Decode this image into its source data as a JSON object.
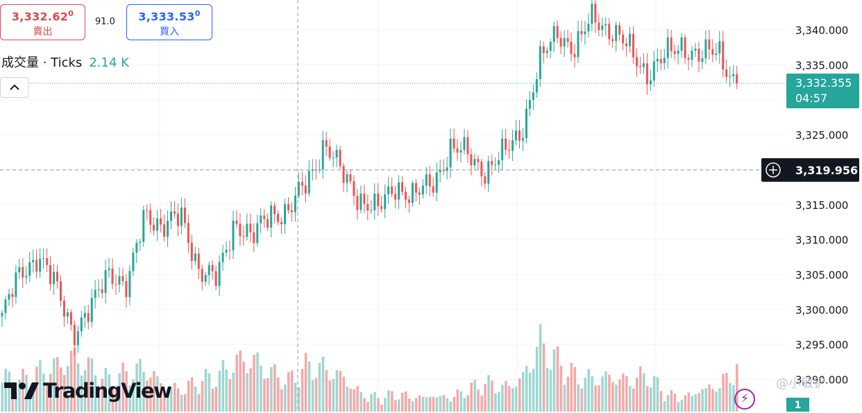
{
  "trade": {
    "sell_price": "3,332.62",
    "sell_sup": "0",
    "sell_label": "賣出",
    "spread": "91.0",
    "buy_price": "3,333.53",
    "buy_sup": "0",
    "buy_label": "買入"
  },
  "volume_legend": {
    "label": "成交量 · Ticks",
    "value": "2.14 K"
  },
  "brand": "TradingView",
  "watermark": "@小敏铲",
  "scale_badge": "1",
  "colors": {
    "up": "#26a69a",
    "down": "#ef5350",
    "vol_up": "#9fd6d1",
    "vol_down": "#f5a8a8",
    "crosshair_label_bg": "#131722"
  },
  "chart_data": {
    "type": "candlestick",
    "y_axis": {
      "ticks": [
        "3,340.000",
        "3,335.000",
        "3,325.000",
        "3,315.000",
        "3,310.000",
        "3,305.000",
        "3,300.000",
        "3,295.000",
        "3,290.000"
      ],
      "ylim": [
        3287.5,
        3344.5
      ]
    },
    "last_price": {
      "value": "3,332.355",
      "countdown": "04:57"
    },
    "crosshair_price": "3,319.956",
    "anchors": [
      {
        "p": 3299,
        "v": 700
      },
      {
        "p": 3305,
        "v": 600
      },
      {
        "p": 3308,
        "v": 800
      },
      {
        "p": 3303,
        "v": 950
      },
      {
        "p": 3297,
        "v": 1150
      },
      {
        "p": 3300,
        "v": 900
      },
      {
        "p": 3306,
        "v": 600
      },
      {
        "p": 3303,
        "v": 800
      },
      {
        "p": 3314,
        "v": 900
      },
      {
        "p": 3312,
        "v": 500
      },
      {
        "p": 3313,
        "v": 400
      },
      {
        "p": 3306,
        "v": 600
      },
      {
        "p": 3304,
        "v": 700
      },
      {
        "p": 3313,
        "v": 1050
      },
      {
        "p": 3310,
        "v": 1100
      },
      {
        "p": 3314,
        "v": 800
      },
      {
        "p": 3314,
        "v": 600
      },
      {
        "p": 3318,
        "v": 950
      },
      {
        "p": 3324,
        "v": 900
      },
      {
        "p": 3319,
        "v": 700
      },
      {
        "p": 3316,
        "v": 300
      },
      {
        "p": 3314,
        "v": 200
      },
      {
        "p": 3318,
        "v": 300
      },
      {
        "p": 3316,
        "v": 200
      },
      {
        "p": 3318,
        "v": 250
      },
      {
        "p": 3323,
        "v": 200
      },
      {
        "p": 3322,
        "v": 400
      },
      {
        "p": 3320,
        "v": 550
      },
      {
        "p": 3322,
        "v": 450
      },
      {
        "p": 3326,
        "v": 650
      },
      {
        "p": 3335,
        "v": 1500
      },
      {
        "p": 3340,
        "v": 1050
      },
      {
        "p": 3337,
        "v": 700
      },
      {
        "p": 3342,
        "v": 650
      },
      {
        "p": 3340,
        "v": 700
      },
      {
        "p": 3337,
        "v": 600
      },
      {
        "p": 3334,
        "v": 750
      },
      {
        "p": 3336,
        "v": 300
      },
      {
        "p": 3338,
        "v": 200
      },
      {
        "p": 3336,
        "v": 400
      },
      {
        "p": 3337,
        "v": 500
      },
      {
        "p": 3332,
        "v": 900
      }
    ]
  }
}
